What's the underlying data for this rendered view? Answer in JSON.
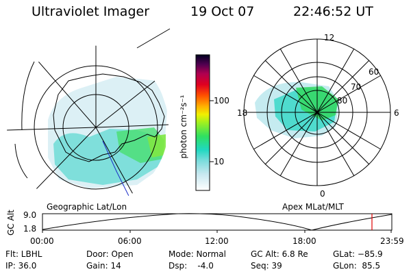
{
  "header": {
    "title": "Ultraviolet Imager",
    "date": "19 Oct 07",
    "time": "22:46:52 UT"
  },
  "geo_panel": {
    "caption": "Geographic Lat/Lon"
  },
  "apex_panel": {
    "caption": "Apex MLat/MLT",
    "mlt_labels": [
      "12",
      "18",
      "6",
      "0"
    ],
    "lat_labels": [
      "60",
      "70",
      "80"
    ]
  },
  "colorbar": {
    "unit_label": "photon cm⁻²s⁻¹",
    "ticks": [
      "100",
      "10"
    ],
    "scale": "log"
  },
  "altitude_plot": {
    "ylabel": "GC Alt",
    "yticks": [
      "9.0",
      "1.8"
    ],
    "xticks": [
      "00:00",
      "06:00",
      "12:00",
      "18:00",
      "23:59"
    ],
    "marker_time": "22:46:52",
    "marker_color": "#e00000"
  },
  "footer": {
    "flt": "Flt: LBHL",
    "ip": "IP: 36.0",
    "door": "Door: Open",
    "gain": "Gain: 14",
    "mode": "Mode: Normal",
    "dsp": "Dsp:    -4.0",
    "gcalt": "GC Alt: 6.8 Re",
    "seq": "Seq: 39",
    "glat": "GLat: −85.9",
    "glon": "GLon:  85.5"
  }
}
